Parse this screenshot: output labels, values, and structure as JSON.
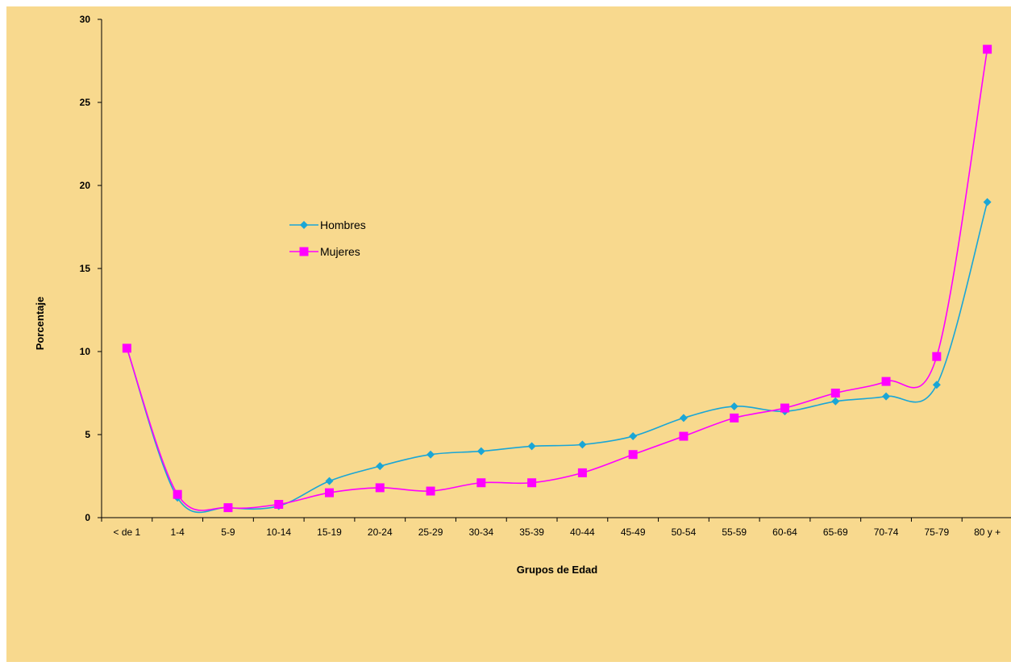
{
  "chart_data": {
    "type": "line",
    "title": "",
    "xlabel": "Grupos de Edad",
    "ylabel": "Porcentaje",
    "ylim": [
      0,
      30
    ],
    "yticks": [
      0,
      5,
      10,
      15,
      20,
      25,
      30
    ],
    "grid": false,
    "legend": "center-left",
    "categories": [
      "< de 1",
      "1-4",
      "5-9",
      "10-14",
      "15-19",
      "20-24",
      "25-29",
      "30-34",
      "35-39",
      "40-44",
      "45-49",
      "50-54",
      "55-59",
      "60-64",
      "65-69",
      "70-74",
      "75-79",
      "80 y +"
    ],
    "series": [
      {
        "name": "Hombres",
        "color": "#1aa6d6",
        "marker": "diamond",
        "values": [
          10.2,
          1.2,
          0.6,
          0.7,
          2.2,
          3.1,
          3.8,
          4.0,
          4.3,
          4.4,
          4.9,
          6.0,
          6.7,
          6.4,
          7.0,
          7.3,
          8.0,
          19.0
        ]
      },
      {
        "name": "Mujeres",
        "color": "#ff00ff",
        "marker": "square",
        "values": [
          10.2,
          1.4,
          0.6,
          0.8,
          1.5,
          1.8,
          1.6,
          2.1,
          2.1,
          2.7,
          3.8,
          4.9,
          6.0,
          6.6,
          7.5,
          8.2,
          9.7,
          28.2
        ]
      }
    ]
  },
  "colors": {
    "background": "#f8d98e",
    "axis": "#000000"
  }
}
